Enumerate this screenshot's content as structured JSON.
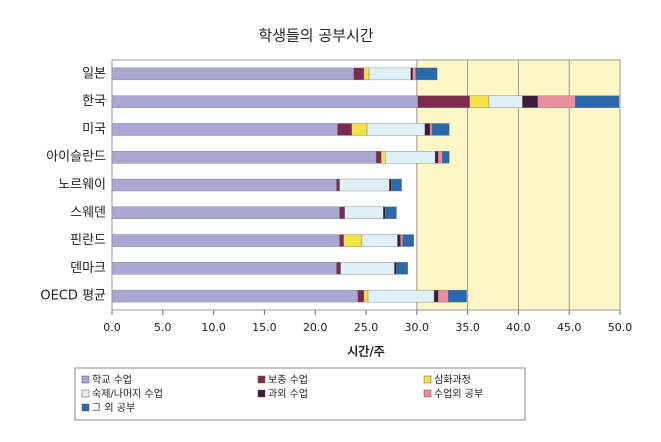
{
  "chart_data": {
    "type": "stacked-barh",
    "title": "학생들의 공부시간",
    "xlabel": "시간/주",
    "categories": [
      "일본",
      "한국",
      "미국",
      "아이슬란드",
      "노르웨이",
      "스웨덴",
      "핀란드",
      "덴마크",
      "OECD 평균"
    ],
    "series": [
      {
        "name": "학교 수업",
        "color": "#aaa7d2",
        "values": [
          23.8,
          30.1,
          22.2,
          26.0,
          22.1,
          22.4,
          22.4,
          22.1,
          24.2
        ]
      },
      {
        "name": "보충 수업",
        "color": "#7d2b4c",
        "values": [
          1.0,
          5.1,
          1.4,
          0.5,
          0.3,
          0.5,
          0.4,
          0.4,
          0.6
        ]
      },
      {
        "name": "심화과정",
        "color": "#f3e24a",
        "values": [
          0.5,
          1.9,
          1.5,
          0.4,
          0,
          0,
          1.8,
          0,
          0.4
        ]
      },
      {
        "name": "숙제/나머지 수업",
        "color": "#dff1f6",
        "values": [
          4.1,
          3.3,
          5.7,
          4.9,
          4.9,
          3.8,
          3.5,
          5.3,
          6.5
        ]
      },
      {
        "name": "과외 수업",
        "color": "#3c1a3e",
        "values": [
          0.2,
          1.5,
          0.5,
          0.3,
          0.2,
          0.2,
          0.3,
          0.2,
          0.4
        ]
      },
      {
        "name": "수업외 공부",
        "color": "#e98c9c",
        "values": [
          0.3,
          3.7,
          0.2,
          0.4,
          0,
          0,
          0.2,
          0,
          1.0
        ]
      },
      {
        "name": "그 외 공부",
        "color": "#2b6aa8",
        "values": [
          2.1,
          4.3,
          1.7,
          0.7,
          1.0,
          1.1,
          1.1,
          1.1,
          1.8
        ]
      }
    ],
    "xlim": [
      0,
      50
    ],
    "xticks": [
      {
        "value": 0,
        "label": "0.0"
      },
      {
        "value": 5,
        "label": "5.0"
      },
      {
        "value": 10,
        "label": "10.0"
      },
      {
        "value": 15,
        "label": "15.0"
      },
      {
        "value": 20,
        "label": "20.0"
      },
      {
        "value": 25,
        "label": "25.0"
      },
      {
        "value": 30,
        "label": "30.0"
      },
      {
        "value": 35,
        "label": "35.0"
      },
      {
        "value": 40,
        "label": "40.0"
      },
      {
        "value": 45,
        "label": "45.0"
      },
      {
        "value": 50,
        "label": "50.0"
      }
    ],
    "shaded_range": [
      30,
      50
    ],
    "shade_color": "#fdf7c8",
    "grid": true,
    "legend": "bottom"
  }
}
